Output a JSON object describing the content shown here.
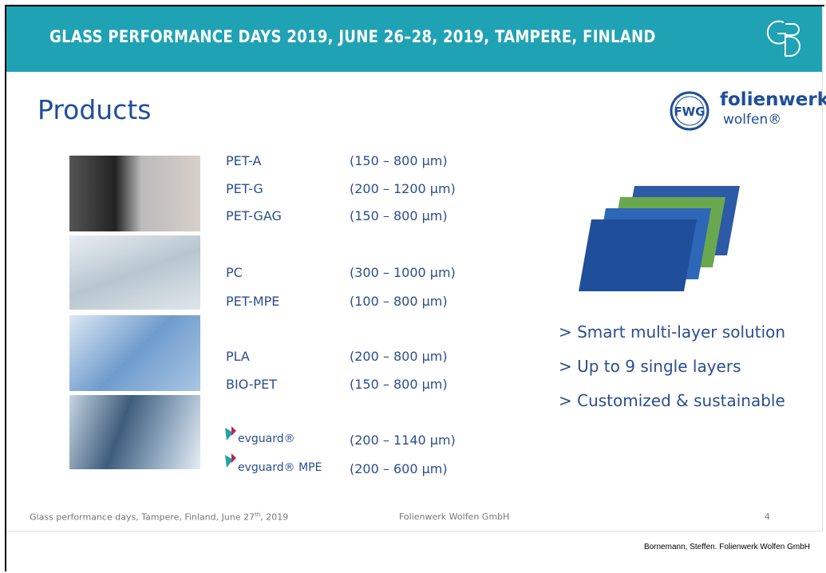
{
  "header": {
    "title": "GLASS PERFORMANCE DAYS 2019, JUNE 26–28, 2019, TAMPERE, FINLAND"
  },
  "slide": {
    "title": "Products",
    "logo": {
      "mark": "FWG",
      "name": "folienwerk",
      "sub": "wolfen®"
    }
  },
  "products": [
    {
      "name": "PET-A",
      "range": "(150 – 800 µm)"
    },
    {
      "name": "PET-G",
      "range": "(200 – 1200 µm)"
    },
    {
      "name": "PET-GAG",
      "range": "(150 – 800 µm)"
    },
    {
      "name": "PC",
      "range": "(300 – 1000 µm)"
    },
    {
      "name": "PET-MPE",
      "range": "(100 – 800 µm)"
    },
    {
      "name": "PLA",
      "range": "(200 – 800 µm)"
    },
    {
      "name": "BIO-PET",
      "range": "(150 – 800 µm)"
    },
    {
      "name": "evguard®",
      "range": "(200 – 1140 µm)"
    },
    {
      "name": "evguard® MPE",
      "range": "(200 – 600 µm)"
    }
  ],
  "features": [
    "> Smart multi-layer solution",
    "> Up to 9 single layers",
    "> Customized & sustainable"
  ],
  "footer": {
    "left": "Glass performance days, Tampere, Finland, June 27",
    "left_sup": "th",
    "left_end": ", 2019",
    "center": "Folienwerk Wolfen GmbH",
    "page": "4"
  },
  "credit": "Bornemann, Steffen. Folienwerk Wolfen GmbH"
}
